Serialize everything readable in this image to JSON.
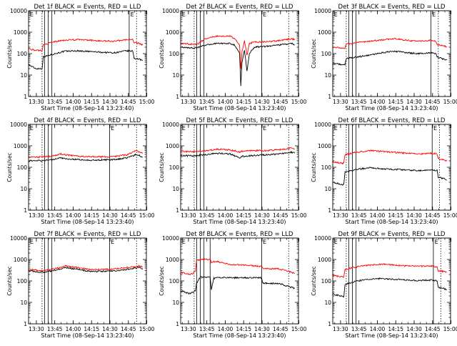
{
  "figure": {
    "colors": {
      "events": "#000000",
      "lld": "#ff0000",
      "axes": "#000000"
    },
    "xtick_labels": [
      "13:30",
      "13:45",
      "14:00",
      "14:15",
      "14:30",
      "14:45",
      "15:00"
    ],
    "ytick_labels": [
      "1",
      "10",
      "100",
      "1000",
      "10000"
    ],
    "ylabel": "Counts/sec",
    "xlabel": "Start Time (08-Sep-14 13:23:40)"
  },
  "chart_data": [
    {
      "type": "line",
      "title": "Det 1f BLACK = Events, RED = LLD",
      "x_unit": "minutes since 13:23:40",
      "xlim": [
        0,
        96
      ],
      "ylim": [
        1,
        10000
      ],
      "yscale": "log",
      "solid_lines_min": [
        13,
        16,
        19,
        82
      ],
      "dotted_lines_min": [
        11,
        88
      ],
      "letters": [
        {
          "x": 1,
          "text": "E"
        },
        {
          "x": 83,
          "text": "E"
        }
      ],
      "series": [
        {
          "name": "Events",
          "color": "#000000",
          "x": [
            0,
            6,
            11,
            12,
            20,
            30,
            40,
            50,
            60,
            70,
            80,
            85,
            86,
            90,
            93
          ],
          "y": [
            30,
            20,
            20,
            70,
            95,
            130,
            135,
            125,
            115,
            110,
            135,
            130,
            60,
            55,
            48
          ]
        },
        {
          "name": "LLD",
          "color": "#ff0000",
          "x": [
            0,
            6,
            11,
            12,
            20,
            30,
            40,
            50,
            60,
            70,
            80,
            85,
            86,
            90,
            93
          ],
          "y": [
            170,
            140,
            140,
            250,
            350,
            430,
            450,
            420,
            390,
            380,
            450,
            450,
            330,
            300,
            250
          ]
        }
      ]
    },
    {
      "type": "line",
      "title": "Det 2f BLACK = Events, RED = LLD",
      "x_unit": "minutes since 13:23:40",
      "xlim": [
        0,
        96
      ],
      "ylim": [
        1,
        10000
      ],
      "yscale": "log",
      "solid_lines_min": [
        13,
        16,
        19,
        66
      ],
      "dotted_lines_min": [
        11,
        88
      ],
      "letters": [
        {
          "x": 1,
          "text": "E"
        },
        {
          "x": 67,
          "text": "E"
        }
      ],
      "series": [
        {
          "name": "Events",
          "color": "#000000",
          "x": [
            0,
            10,
            14,
            20,
            30,
            40,
            44,
            48,
            49,
            50,
            52,
            54,
            56,
            60,
            70,
            80,
            90,
            93
          ],
          "y": [
            200,
            180,
            190,
            250,
            300,
            300,
            250,
            100,
            3,
            40,
            150,
            15,
            100,
            200,
            220,
            250,
            300,
            260
          ]
        },
        {
          "name": "LLD",
          "color": "#ff0000",
          "x": [
            0,
            10,
            14,
            20,
            30,
            40,
            44,
            48,
            49,
            50,
            52,
            54,
            56,
            60,
            70,
            80,
            90,
            93
          ],
          "y": [
            300,
            270,
            280,
            500,
            650,
            650,
            500,
            250,
            20,
            120,
            400,
            80,
            300,
            350,
            350,
            400,
            500,
            450
          ]
        }
      ]
    },
    {
      "type": "line",
      "title": "Det 3f BLACK = Events, RED = LLD",
      "x_unit": "minutes since 13:23:40",
      "xlim": [
        0,
        96
      ],
      "ylim": [
        1,
        10000
      ],
      "yscale": "log",
      "solid_lines_min": [
        13,
        16,
        19,
        80
      ],
      "dotted_lines_min": [
        11,
        86
      ],
      "letters": [
        {
          "x": 1,
          "text": "E"
        },
        {
          "x": 81,
          "text": "E"
        }
      ],
      "series": [
        {
          "name": "Events",
          "color": "#000000",
          "x": [
            0,
            10,
            11,
            20,
            30,
            40,
            50,
            60,
            70,
            80,
            84,
            85,
            90,
            93
          ],
          "y": [
            35,
            30,
            60,
            70,
            85,
            110,
            130,
            110,
            100,
            110,
            100,
            70,
            55,
            50
          ]
        },
        {
          "name": "LLD",
          "color": "#ff0000",
          "x": [
            0,
            10,
            11,
            20,
            30,
            40,
            50,
            60,
            70,
            80,
            84,
            85,
            90,
            93
          ],
          "y": [
            200,
            180,
            280,
            330,
            380,
            440,
            500,
            420,
            380,
            420,
            360,
            260,
            230,
            210
          ]
        }
      ]
    },
    {
      "type": "line",
      "title": "Det 4f BLACK = Events, RED = LLD",
      "x_unit": "minutes since 13:23:40",
      "xlim": [
        0,
        96
      ],
      "ylim": [
        1,
        10000
      ],
      "yscale": "log",
      "solid_lines_min": [
        13,
        16,
        19,
        66
      ],
      "dotted_lines_min": [
        11,
        88
      ],
      "letters": [
        {
          "x": 1,
          "text": "E"
        },
        {
          "x": 67,
          "text": "E"
        }
      ],
      "series": [
        {
          "name": "Events",
          "color": "#000000",
          "x": [
            0,
            10,
            20,
            26,
            30,
            40,
            50,
            60,
            70,
            80,
            88,
            93
          ],
          "y": [
            200,
            200,
            230,
            280,
            250,
            230,
            210,
            220,
            230,
            270,
            400,
            300
          ]
        },
        {
          "name": "LLD",
          "color": "#ff0000",
          "x": [
            0,
            10,
            20,
            26,
            30,
            40,
            50,
            60,
            70,
            80,
            88,
            93
          ],
          "y": [
            300,
            300,
            330,
            420,
            380,
            330,
            310,
            310,
            320,
            380,
            600,
            440
          ]
        }
      ]
    },
    {
      "type": "line",
      "title": "Det 5f BLACK = Events, RED = LLD",
      "x_unit": "minutes since 13:23:40",
      "xlim": [
        0,
        96
      ],
      "ylim": [
        1,
        10000
      ],
      "yscale": "log",
      "solid_lines_min": [
        13,
        16,
        19,
        66
      ],
      "dotted_lines_min": [
        11,
        88
      ],
      "letters": [
        {
          "x": 1,
          "text": "E"
        },
        {
          "x": 67,
          "text": "E"
        }
      ],
      "series": [
        {
          "name": "Events",
          "color": "#000000",
          "x": [
            0,
            10,
            20,
            30,
            40,
            48,
            50,
            60,
            70,
            80,
            90,
            93
          ],
          "y": [
            350,
            340,
            380,
            450,
            420,
            280,
            320,
            360,
            380,
            420,
            500,
            460
          ]
        },
        {
          "name": "LLD",
          "color": "#ff0000",
          "x": [
            0,
            10,
            20,
            30,
            40,
            48,
            50,
            60,
            70,
            80,
            90,
            93
          ],
          "y": [
            550,
            530,
            580,
            700,
            650,
            520,
            560,
            600,
            600,
            650,
            800,
            720
          ]
        }
      ]
    },
    {
      "type": "line",
      "title": "Det 6f BLACK = Events, RED = LLD",
      "x_unit": "minutes since 13:23:40",
      "xlim": [
        0,
        96
      ],
      "ylim": [
        1,
        10000
      ],
      "yscale": "log",
      "solid_lines_min": [
        13,
        16,
        19,
        81
      ],
      "dotted_lines_min": [
        11,
        87
      ],
      "letters": [
        {
          "x": 1,
          "text": "E"
        },
        {
          "x": 82,
          "text": "E"
        }
      ],
      "series": [
        {
          "name": "Events",
          "color": "#000000",
          "x": [
            0,
            9,
            10,
            20,
            30,
            40,
            50,
            60,
            70,
            80,
            85,
            86,
            90,
            93
          ],
          "y": [
            20,
            15,
            60,
            80,
            95,
            85,
            80,
            75,
            70,
            75,
            70,
            35,
            30,
            25
          ]
        },
        {
          "name": "LLD",
          "color": "#ff0000",
          "x": [
            0,
            9,
            10,
            20,
            30,
            40,
            50,
            60,
            70,
            80,
            85,
            86,
            90,
            93
          ],
          "y": [
            180,
            150,
            400,
            500,
            600,
            550,
            500,
            450,
            420,
            450,
            420,
            250,
            230,
            200
          ]
        }
      ]
    },
    {
      "type": "line",
      "title": "Det 7f BLACK = Events, RED = LLD",
      "x_unit": "minutes since 13:23:40",
      "xlim": [
        0,
        96
      ],
      "ylim": [
        1,
        10000
      ],
      "yscale": "log",
      "solid_lines_min": [
        13,
        16,
        19,
        66
      ],
      "dotted_lines_min": [
        11,
        88
      ],
      "letters": [
        {
          "x": 1,
          "text": "E"
        },
        {
          "x": 67,
          "text": "E"
        }
      ],
      "series": [
        {
          "name": "Events",
          "color": "#000000",
          "x": [
            0,
            10,
            20,
            30,
            40,
            50,
            60,
            70,
            80,
            90,
            93
          ],
          "y": [
            300,
            250,
            300,
            420,
            350,
            280,
            280,
            300,
            350,
            420,
            380
          ]
        },
        {
          "name": "LLD",
          "color": "#ff0000",
          "x": [
            0,
            10,
            20,
            30,
            40,
            50,
            60,
            70,
            80,
            90,
            93
          ],
          "y": [
            350,
            300,
            360,
            500,
            420,
            340,
            340,
            360,
            420,
            500,
            450
          ]
        }
      ]
    },
    {
      "type": "line",
      "title": "Det 8f BLACK = Events, RED = LLD",
      "x_unit": "minutes since 13:23:40",
      "xlim": [
        0,
        96
      ],
      "ylim": [
        1,
        10000
      ],
      "yscale": "log",
      "solid_lines_min": [
        13,
        16,
        19,
        24,
        66
      ],
      "dotted_lines_min": [
        11,
        88
      ],
      "letters": [
        {
          "x": 1,
          "text": "E"
        },
        {
          "x": 67,
          "text": "E"
        }
      ],
      "series": [
        {
          "name": "Events",
          "color": "#000000",
          "x": [
            0,
            8,
            10,
            12,
            13,
            16,
            20,
            24,
            25,
            27,
            30,
            40,
            50,
            60,
            66,
            67,
            80,
            86,
            93
          ],
          "y": [
            35,
            25,
            30,
            35,
            80,
            150,
            150,
            150,
            40,
            130,
            150,
            140,
            140,
            140,
            140,
            80,
            75,
            60,
            45
          ]
        },
        {
          "name": "LLD",
          "color": "#ff0000",
          "x": [
            0,
            8,
            10,
            12,
            13,
            16,
            20,
            24,
            25,
            27,
            30,
            40,
            50,
            60,
            66,
            67,
            80,
            86,
            93
          ],
          "y": [
            250,
            200,
            220,
            300,
            900,
            1000,
            1000,
            1000,
            700,
            800,
            800,
            600,
            550,
            500,
            480,
            380,
            370,
            300,
            230
          ]
        }
      ]
    },
    {
      "type": "line",
      "title": "Det 9f BLACK = Events, RED = LLD",
      "x_unit": "minutes since 13:23:40",
      "xlim": [
        0,
        96
      ],
      "ylim": [
        1,
        10000
      ],
      "yscale": "log",
      "solid_lines_min": [
        13,
        16,
        19,
        82
      ],
      "dotted_lines_min": [
        11,
        88
      ],
      "letters": [
        {
          "x": 1,
          "text": "E"
        },
        {
          "x": 83,
          "text": "E"
        }
      ],
      "series": [
        {
          "name": "Events",
          "color": "#000000",
          "x": [
            0,
            9,
            10,
            20,
            30,
            40,
            50,
            60,
            70,
            80,
            85,
            86,
            90,
            93
          ],
          "y": [
            25,
            18,
            70,
            100,
            120,
            130,
            120,
            110,
            105,
            110,
            100,
            50,
            45,
            40
          ]
        },
        {
          "name": "LLD",
          "color": "#ff0000",
          "x": [
            0,
            9,
            10,
            20,
            30,
            40,
            50,
            60,
            70,
            80,
            85,
            86,
            90,
            93
          ],
          "y": [
            180,
            150,
            350,
            450,
            550,
            600,
            550,
            500,
            480,
            500,
            450,
            300,
            280,
            250
          ]
        }
      ]
    }
  ]
}
